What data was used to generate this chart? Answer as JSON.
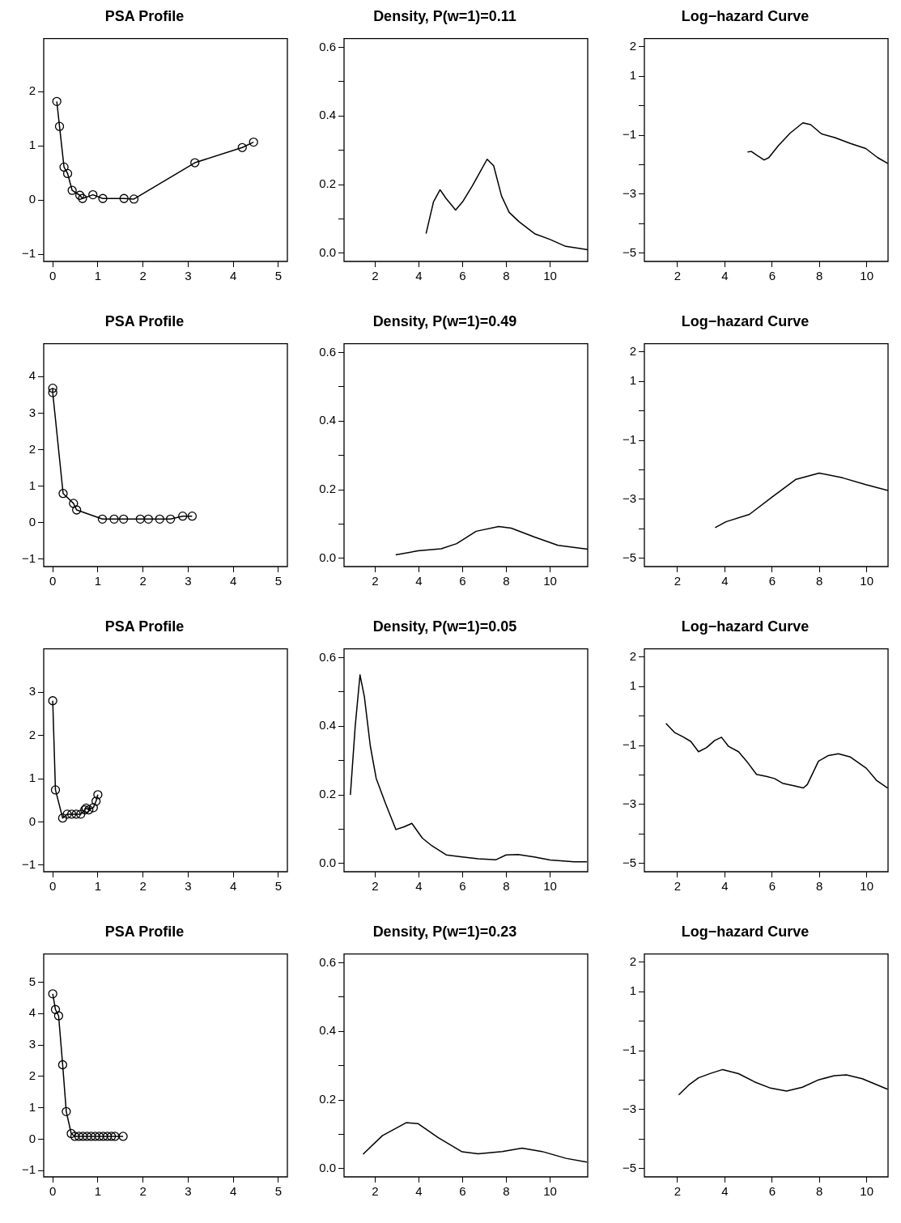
{
  "chart_data": [
    {
      "type": "line",
      "title": "PSA Profile",
      "marker": "circle",
      "color": "#000000",
      "xlim": [
        -0.2,
        5.2
      ],
      "ylim": [
        -1.13,
        2.98
      ],
      "xticks": [
        0,
        1,
        2,
        3,
        4,
        5
      ],
      "yticks": [
        -1,
        0,
        1,
        2
      ],
      "x": [
        0.09,
        0.15,
        0.25,
        0.33,
        0.43,
        0.6,
        0.66,
        0.89,
        1.11,
        1.58,
        1.8,
        3.15,
        4.2,
        4.45
      ],
      "values": [
        1.82,
        1.36,
        0.61,
        0.49,
        0.18,
        0.09,
        0.03,
        0.1,
        0.03,
        0.03,
        0.02,
        0.69,
        0.97,
        1.07
      ]
    },
    {
      "type": "line",
      "title": "Density, P(w=1)=0.11",
      "marker": "none",
      "color": "#000000",
      "xlim": [
        0.58,
        11.72
      ],
      "ylim": [
        -0.024,
        0.626
      ],
      "xticks": [
        2,
        4,
        6,
        8,
        10
      ],
      "yticks": [
        {
          "value": 0,
          "label": "0.0"
        },
        {
          "value": 0.1,
          "label": null
        },
        0.2,
        {
          "value": 0.3,
          "label": null
        },
        0.4,
        {
          "value": 0.5,
          "label": null
        },
        0.6
      ],
      "x": [
        4.33,
        4.67,
        4.97,
        5.24,
        5.68,
        6.0,
        6.44,
        6.8,
        7.12,
        7.42,
        7.78,
        8.13,
        8.58,
        9.29,
        10.0,
        10.71,
        11.72
      ],
      "values": [
        0.057,
        0.15,
        0.185,
        0.16,
        0.126,
        0.15,
        0.196,
        0.237,
        0.274,
        0.255,
        0.167,
        0.119,
        0.092,
        0.057,
        0.04,
        0.02,
        0.01
      ]
    },
    {
      "type": "line",
      "title": "Log−hazard Curve",
      "marker": "none",
      "color": "#000000",
      "xlim": [
        0.6,
        10.9
      ],
      "ylim": [
        -5.28,
        2.28
      ],
      "xticks": [
        2,
        4,
        6,
        8,
        10
      ],
      "yticks": [
        -5,
        {
          "value": -4,
          "label": null
        },
        -3,
        {
          "value": -2,
          "label": null
        },
        -1,
        {
          "value": 0,
          "label": null
        },
        1,
        2
      ],
      "x": [
        4.96,
        5.12,
        5.37,
        5.66,
        5.86,
        6.27,
        6.76,
        7.3,
        7.63,
        8.08,
        8.65,
        9.31,
        9.96,
        10.46,
        10.9
      ],
      "values": [
        -1.57,
        -1.55,
        -1.69,
        -1.84,
        -1.76,
        -1.35,
        -0.93,
        -0.58,
        -0.64,
        -0.95,
        -1.08,
        -1.28,
        -1.45,
        -1.76,
        -1.96
      ]
    },
    {
      "type": "line",
      "title": "PSA Profile",
      "marker": "circle",
      "color": "#000000",
      "xlim": [
        -0.2,
        5.2
      ],
      "ylim": [
        -1.2,
        4.9
      ],
      "xticks": [
        0,
        1,
        2,
        3,
        4,
        5
      ],
      "yticks": [
        -1,
        0,
        1,
        2,
        3,
        4
      ],
      "x": [
        0.0,
        0.0,
        0.23,
        0.46,
        0.53,
        1.1,
        1.36,
        1.57,
        1.94,
        2.12,
        2.37,
        2.61,
        2.88,
        3.09
      ],
      "values": [
        3.68,
        3.56,
        0.8,
        0.53,
        0.35,
        0.1,
        0.1,
        0.1,
        0.1,
        0.1,
        0.1,
        0.1,
        0.18,
        0.18
      ]
    },
    {
      "type": "line",
      "title": "Density, P(w=1)=0.49",
      "marker": "none",
      "color": "#000000",
      "xlim": [
        0.58,
        11.72
      ],
      "ylim": [
        -0.024,
        0.626
      ],
      "xticks": [
        2,
        4,
        6,
        8,
        10
      ],
      "yticks": [
        {
          "value": 0,
          "label": "0.0"
        },
        {
          "value": 0.1,
          "label": null
        },
        0.2,
        {
          "value": 0.3,
          "label": null
        },
        0.4,
        {
          "value": 0.5,
          "label": null
        },
        0.6
      ],
      "x": [
        2.94,
        3.96,
        5.02,
        5.73,
        6.62,
        7.65,
        8.22,
        9.29,
        10.36,
        11.72
      ],
      "values": [
        0.01,
        0.022,
        0.028,
        0.043,
        0.079,
        0.093,
        0.088,
        0.062,
        0.038,
        0.027
      ]
    },
    {
      "type": "line",
      "title": "Log−hazard Curve",
      "marker": "none",
      "color": "#000000",
      "xlim": [
        0.6,
        10.9
      ],
      "ylim": [
        -5.28,
        2.28
      ],
      "xticks": [
        2,
        4,
        6,
        8,
        10
      ],
      "yticks": [
        -5,
        {
          "value": -4,
          "label": null
        },
        -3,
        {
          "value": -2,
          "label": null
        },
        -1,
        {
          "value": 0,
          "label": null
        },
        1,
        2
      ],
      "x": [
        3.59,
        4.05,
        5.04,
        6.02,
        7.01,
        7.99,
        8.98,
        9.96,
        10.9
      ],
      "values": [
        -3.96,
        -3.76,
        -3.51,
        -2.91,
        -2.32,
        -2.11,
        -2.27,
        -2.5,
        -2.7
      ]
    },
    {
      "type": "line",
      "title": "PSA Profile",
      "marker": "circle",
      "color": "#000000",
      "xlim": [
        -0.2,
        5.2
      ],
      "ylim": [
        -1.15,
        4.0
      ],
      "xticks": [
        0,
        1,
        2,
        3,
        4,
        5
      ],
      "yticks": [
        -1,
        0,
        1,
        2,
        3
      ],
      "x": [
        0.0,
        0.06,
        0.22,
        0.32,
        0.42,
        0.52,
        0.62,
        0.71,
        0.74,
        0.8,
        0.9,
        0.96,
        1.0
      ],
      "values": [
        2.8,
        0.74,
        0.09,
        0.18,
        0.18,
        0.18,
        0.18,
        0.28,
        0.32,
        0.28,
        0.33,
        0.48,
        0.63
      ]
    },
    {
      "type": "line",
      "title": "Density, P(w=1)=0.05",
      "marker": "none",
      "color": "#000000",
      "xlim": [
        0.58,
        11.72
      ],
      "ylim": [
        -0.024,
        0.626
      ],
      "xticks": [
        2,
        4,
        6,
        8,
        10
      ],
      "yticks": [
        {
          "value": 0,
          "label": "0.0"
        },
        {
          "value": 0.1,
          "label": null
        },
        0.2,
        {
          "value": 0.3,
          "label": null
        },
        0.4,
        {
          "value": 0.5,
          "label": null
        },
        0.6
      ],
      "x": [
        0.87,
        1.09,
        1.31,
        1.51,
        1.78,
        2.05,
        2.47,
        2.95,
        3.33,
        3.68,
        4.16,
        4.61,
        5.25,
        5.98,
        6.71,
        7.53,
        7.99,
        8.54,
        9.27,
        10.0,
        11.1,
        11.68
      ],
      "values": [
        0.2,
        0.4,
        0.55,
        0.486,
        0.343,
        0.248,
        0.176,
        0.099,
        0.107,
        0.117,
        0.074,
        0.051,
        0.025,
        0.019,
        0.014,
        0.011,
        0.025,
        0.026,
        0.019,
        0.01,
        0.005,
        0.005
      ]
    },
    {
      "type": "line",
      "title": "Log−hazard Curve",
      "marker": "none",
      "color": "#000000",
      "xlim": [
        0.6,
        10.9
      ],
      "ylim": [
        -5.28,
        2.28
      ],
      "xticks": [
        2,
        4,
        6,
        8,
        10
      ],
      "yticks": [
        -5,
        {
          "value": -4,
          "label": null
        },
        -3,
        {
          "value": -2,
          "label": null
        },
        -1,
        {
          "value": 0,
          "label": null
        },
        1,
        2
      ],
      "x": [
        1.51,
        1.88,
        2.22,
        2.56,
        2.89,
        3.23,
        3.57,
        3.86,
        4.16,
        4.58,
        4.92,
        5.34,
        5.76,
        6.1,
        6.44,
        6.95,
        7.32,
        7.49,
        7.96,
        8.38,
        8.8,
        9.31,
        9.98,
        10.41,
        10.88
      ],
      "values": [
        -0.25,
        -0.56,
        -0.7,
        -0.86,
        -1.21,
        -1.07,
        -0.83,
        -0.72,
        -1.03,
        -1.21,
        -1.53,
        -1.98,
        -2.05,
        -2.12,
        -2.28,
        -2.37,
        -2.44,
        -2.32,
        -1.53,
        -1.34,
        -1.28,
        -1.39,
        -1.77,
        -2.18,
        -2.44
      ]
    },
    {
      "type": "line",
      "title": "PSA Profile",
      "marker": "circle",
      "color": "#000000",
      "xlim": [
        -0.2,
        5.2
      ],
      "ylim": [
        -1.2,
        5.9
      ],
      "xticks": [
        0,
        1,
        2,
        3,
        4,
        5
      ],
      "yticks": [
        -1,
        0,
        1,
        2,
        3,
        4,
        5
      ],
      "x": [
        0.0,
        0.06,
        0.13,
        0.22,
        0.3,
        0.41,
        0.49,
        0.58,
        0.67,
        0.76,
        0.85,
        0.94,
        1.03,
        1.12,
        1.21,
        1.3,
        1.38,
        1.56
      ],
      "values": [
        4.63,
        4.13,
        3.93,
        2.37,
        0.88,
        0.18,
        0.09,
        0.09,
        0.09,
        0.09,
        0.09,
        0.09,
        0.09,
        0.09,
        0.09,
        0.09,
        0.09,
        0.09
      ]
    },
    {
      "type": "line",
      "title": "Density, P(w=1)=0.23",
      "marker": "none",
      "color": "#000000",
      "xlim": [
        0.58,
        11.72
      ],
      "ylim": [
        -0.024,
        0.626
      ],
      "xticks": [
        2,
        4,
        6,
        8,
        10
      ],
      "yticks": [
        {
          "value": 0,
          "label": "0.0"
        },
        {
          "value": 0.1,
          "label": null
        },
        0.2,
        {
          "value": 0.3,
          "label": null
        },
        0.4,
        {
          "value": 0.5,
          "label": null
        },
        0.6
      ],
      "x": [
        1.45,
        2.33,
        3.42,
        3.97,
        4.89,
        5.98,
        6.71,
        7.81,
        8.72,
        9.63,
        10.73,
        11.68
      ],
      "values": [
        0.042,
        0.096,
        0.134,
        0.131,
        0.09,
        0.049,
        0.043,
        0.05,
        0.06,
        0.05,
        0.03,
        0.019
      ]
    },
    {
      "type": "line",
      "title": "Log−hazard Curve",
      "marker": "none",
      "color": "#000000",
      "xlim": [
        0.6,
        10.9
      ],
      "ylim": [
        -5.28,
        2.28
      ],
      "xticks": [
        2,
        4,
        6,
        8,
        10
      ],
      "yticks": [
        -5,
        {
          "value": -4,
          "label": null
        },
        -3,
        {
          "value": -2,
          "label": null
        },
        -1,
        {
          "value": 0,
          "label": null
        },
        1,
        2
      ],
      "x": [
        2.05,
        2.47,
        2.89,
        3.4,
        3.91,
        4.58,
        5.26,
        5.93,
        6.61,
        7.28,
        7.96,
        8.63,
        9.14,
        9.81,
        10.88
      ],
      "values": [
        -2.5,
        -2.17,
        -1.92,
        -1.77,
        -1.64,
        -1.78,
        -2.06,
        -2.27,
        -2.37,
        -2.24,
        -1.99,
        -1.85,
        -1.82,
        -1.95,
        -2.31
      ]
    }
  ]
}
